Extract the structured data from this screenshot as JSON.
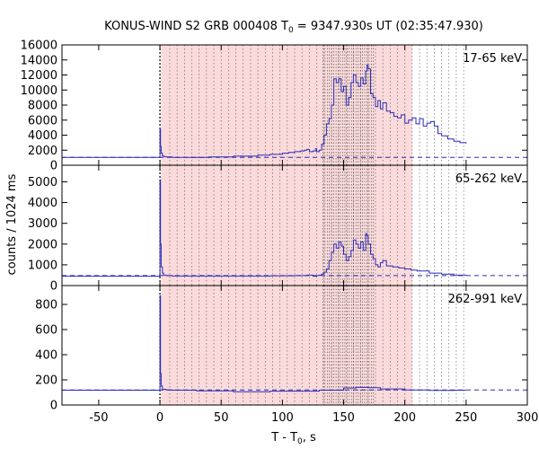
{
  "chart_data": {
    "type": "line",
    "title": {
      "main": "KONUS-WIND S2 GRB 000408 T",
      "sub": "0",
      "rest": " = 9347.930s UT (02:35:47.930)"
    },
    "xlabel": {
      "main": "T - T",
      "sub": "0",
      "rest": ", s"
    },
    "ylabel": "counts / 1024 ms",
    "xlim": [
      -80,
      300
    ],
    "xticks": [
      -50,
      0,
      50,
      100,
      150,
      200,
      250,
      300
    ],
    "xtick_labels": [
      "-50",
      "0",
      "50",
      "100",
      "150",
      "200",
      "250",
      "300"
    ],
    "trigger_time": 0,
    "shaded_region": {
      "start": 1,
      "end": 206,
      "color": "#fadada"
    },
    "dense_interval_lines": {
      "start": 133,
      "end": 175,
      "step": 1.8
    },
    "sparse_interval_lines": {
      "start": 8,
      "end": 250,
      "step": 6
    },
    "trace_color": "#2b2bb8",
    "panels": [
      {
        "label": "17-65 keV",
        "ylim": [
          0,
          16000
        ],
        "yticks": [
          0,
          2000,
          4000,
          6000,
          8000,
          10000,
          12000,
          14000,
          16000
        ],
        "ytick_labels": [
          "0",
          "2000",
          "4000",
          "6000",
          "8000",
          "10000",
          "12000",
          "14000",
          "16000"
        ],
        "background_level": 1050,
        "x": [
          -80,
          -1,
          0,
          0.5,
          1,
          2,
          3,
          5,
          10,
          20,
          40,
          60,
          80,
          90,
          100,
          105,
          110,
          115,
          118,
          120,
          122,
          125,
          127,
          128,
          130,
          132,
          134,
          136,
          138,
          140,
          142,
          144,
          146,
          148,
          150,
          152,
          154,
          156,
          158,
          160,
          162,
          164,
          166,
          168,
          169,
          170,
          172,
          174,
          176,
          178,
          180,
          182,
          185,
          188,
          191,
          194,
          197,
          200,
          203,
          206,
          209,
          212,
          215,
          218,
          221,
          224,
          227,
          230,
          235,
          240,
          245,
          250
        ],
        "y": [
          1050,
          1050,
          4800,
          2500,
          1600,
          1250,
          1150,
          1100,
          1050,
          1050,
          1100,
          1200,
          1350,
          1450,
          1600,
          1700,
          1800,
          1900,
          2000,
          2100,
          1800,
          1900,
          2200,
          1800,
          2000,
          2800,
          4000,
          5500,
          6200,
          8000,
          11500,
          11000,
          11500,
          9800,
          10500,
          8000,
          9000,
          11000,
          12000,
          11000,
          10500,
          11600,
          10800,
          12500,
          13300,
          12800,
          9500,
          9000,
          7800,
          8600,
          7500,
          8300,
          7200,
          7000,
          6500,
          6300,
          6700,
          5600,
          6000,
          6300,
          5500,
          6200,
          5200,
          5600,
          5800,
          5200,
          4200,
          3900,
          3500,
          3200,
          3000,
          2900
        ]
      },
      {
        "label": "65-262 keV",
        "ylim": [
          0,
          5800
        ],
        "yticks": [
          0,
          1000,
          2000,
          3000,
          4000,
          5000
        ],
        "ytick_labels": [
          "0",
          "1000",
          "2000",
          "3000",
          "4000",
          "5000"
        ],
        "background_level": 480,
        "x": [
          -80,
          -1,
          0,
          0.5,
          1,
          2,
          3,
          5,
          10,
          30,
          60,
          90,
          110,
          120,
          125,
          128,
          130,
          132,
          134,
          136,
          138,
          140,
          142,
          144,
          146,
          148,
          150,
          152,
          154,
          156,
          158,
          160,
          162,
          164,
          166,
          168,
          169,
          170,
          172,
          174,
          176,
          178,
          180,
          182,
          185,
          190,
          195,
          200,
          205,
          210,
          220,
          230,
          240,
          250
        ],
        "y": [
          450,
          450,
          5100,
          2000,
          900,
          600,
          500,
          480,
          460,
          460,
          460,
          470,
          480,
          500,
          450,
          480,
          500,
          550,
          650,
          800,
          1200,
          1600,
          2000,
          1800,
          2100,
          1900,
          1500,
          1200,
          1400,
          1700,
          2200,
          2000,
          1800,
          2100,
          1700,
          2500,
          2400,
          2000,
          1500,
          1300,
          1000,
          900,
          1100,
          1200,
          950,
          900,
          850,
          800,
          750,
          700,
          600,
          550,
          500,
          480
        ]
      },
      {
        "label": "262-991 keV",
        "ylim": [
          0,
          950
        ],
        "yticks": [
          0,
          200,
          400,
          600,
          800
        ],
        "ytick_labels": [
          "0",
          "200",
          "400",
          "600",
          "800"
        ],
        "background_level": 120,
        "x": [
          -80,
          -1,
          0,
          0.5,
          1,
          2,
          5,
          10,
          30,
          60,
          90,
          110,
          130,
          150,
          160,
          170,
          180,
          200,
          220,
          240,
          250
        ],
        "y": [
          118,
          118,
          870,
          250,
          150,
          125,
          120,
          118,
          112,
          105,
          110,
          110,
          118,
          135,
          140,
          138,
          128,
          120,
          116,
          118,
          118
        ]
      }
    ]
  }
}
